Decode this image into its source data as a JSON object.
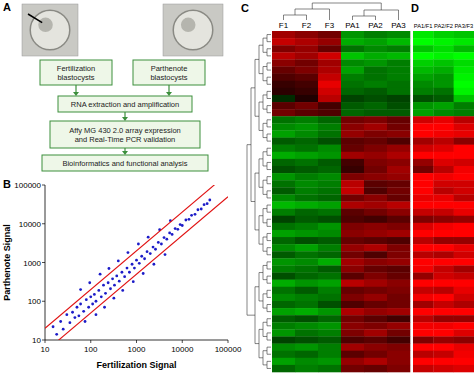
{
  "panel_labels": [
    "A",
    "B",
    "C",
    "D"
  ],
  "flowchart": {
    "nodes": [
      {
        "lines": [
          "Fertilization",
          "blastocysts"
        ]
      },
      {
        "lines": [
          "Parthenote",
          "blastocysts"
        ]
      },
      {
        "lines": [
          "RNA extraction and amplification"
        ]
      },
      {
        "lines": [
          "Affy MG 430 2.0 array expression",
          "and Real-Time PCR validation"
        ]
      },
      {
        "lines": [
          "Bioinformatics and functional analysis"
        ]
      }
    ]
  },
  "chart_data": [
    {
      "type": "scatter",
      "xlabel": "Fertilization Signal",
      "ylabel": "Parthenote Signal",
      "log": true,
      "xlim": [
        10,
        100000
      ],
      "ylim": [
        10,
        100000
      ],
      "xticks": [
        10,
        100,
        1000,
        10000,
        100000
      ],
      "yticks": [
        10,
        100,
        1000,
        10000,
        100000
      ],
      "color": "#1c1cc8",
      "fold_lines": [
        2,
        0.5
      ],
      "x": [
        15,
        18,
        22,
        25,
        30,
        35,
        40,
        45,
        50,
        55,
        60,
        70,
        80,
        90,
        100,
        110,
        120,
        130,
        150,
        170,
        190,
        210,
        240,
        270,
        300,
        330,
        370,
        420,
        480,
        550,
        620,
        700,
        800,
        900,
        1000,
        1150,
        1300,
        1500,
        1700,
        2000,
        2300,
        2600,
        3000,
        3500,
        4000,
        4600,
        5300,
        6000,
        7000,
        8000,
        9000,
        10000,
        12000,
        14000,
        16000,
        19000,
        22000,
        26000,
        30000,
        35000,
        40000,
        60,
        75,
        95,
        130,
        160,
        200,
        250,
        320,
        400,
        500,
        650,
        850,
        1100,
        1400,
        1800,
        2400,
        3200,
        4200,
        5500
      ],
      "values": [
        22,
        14,
        30,
        19,
        45,
        28,
        52,
        38,
        70,
        42,
        85,
        55,
        110,
        70,
        130,
        85,
        150,
        100,
        190,
        130,
        260,
        160,
        300,
        210,
        380,
        260,
        450,
        330,
        560,
        430,
        720,
        560,
        900,
        720,
        1150,
        950,
        1450,
        1250,
        1900,
        1700,
        2500,
        2200,
        3300,
        3000,
        4400,
        4000,
        5800,
        5300,
        7500,
        7200,
        9500,
        9000,
        12500,
        13000,
        16500,
        17500,
        23000,
        24000,
        31000,
        33000,
        41000,
        200,
        30,
        300,
        45,
        500,
        70,
        700,
        120,
        1100,
        190,
        1800,
        320,
        3000,
        520,
        4500,
        900,
        7000,
        1600,
        12000
      ]
    },
    {
      "type": "heatmap",
      "columns": [
        "F1",
        "F2",
        "F3",
        "PA1",
        "PA2",
        "PA3"
      ],
      "zlim": [
        -2,
        2
      ],
      "cells": [
        [
          1.2,
          1.0,
          0.8,
          -1.1,
          -0.9,
          -1.0
        ],
        [
          1.5,
          1.3,
          1.1,
          -1.3,
          -1.2,
          -1.4
        ],
        [
          0.9,
          1.1,
          0.7,
          -0.8,
          -1.0,
          -0.9
        ],
        [
          1.4,
          1.2,
          1.6,
          -1.5,
          -1.3,
          -1.4
        ],
        [
          1.0,
          0.8,
          1.2,
          -1.0,
          -1.1,
          -0.9
        ],
        [
          0.7,
          0.9,
          1.3,
          -1.2,
          -0.8,
          -0.9
        ],
        [
          0.5,
          0.6,
          1.5,
          -0.9,
          -0.8,
          -0.9
        ],
        [
          0.3,
          0.4,
          1.8,
          -0.8,
          -0.9,
          -0.8
        ],
        [
          0.2,
          0.3,
          1.6,
          -0.7,
          -0.6,
          -0.8
        ],
        [
          -0.2,
          0.1,
          1.4,
          -0.4,
          -0.5,
          -0.4
        ],
        [
          0.6,
          0.8,
          0.4,
          -0.6,
          -0.7,
          -0.5
        ],
        [
          0.8,
          0.6,
          0.5,
          -0.7,
          -0.6,
          -0.6
        ],
        [
          -0.8,
          -0.9,
          -0.7,
          0.8,
          0.9,
          0.7
        ],
        [
          -1.0,
          -1.1,
          -0.9,
          1.0,
          1.2,
          0.8
        ],
        [
          -1.2,
          -1.0,
          -0.8,
          1.1,
          0.9,
          1.0
        ],
        [
          -0.6,
          -0.7,
          -0.5,
          0.6,
          0.7,
          0.5
        ],
        [
          -0.9,
          -0.8,
          -1.0,
          0.7,
          0.9,
          1.1
        ],
        [
          -1.3,
          -1.2,
          -1.1,
          1.2,
          1.1,
          1.3
        ],
        [
          -0.7,
          -0.8,
          -0.6,
          0.4,
          0.9,
          1.0
        ],
        [
          -0.5,
          -0.6,
          -0.7,
          0.3,
          0.8,
          1.2
        ],
        [
          -1.1,
          -0.9,
          -1.0,
          0.9,
          1.0,
          1.1
        ],
        [
          -0.8,
          -1.0,
          -0.9,
          1.4,
          0.6,
          0.7
        ],
        [
          -0.6,
          -0.9,
          -0.8,
          1.5,
          0.5,
          0.8
        ],
        [
          -1.0,
          -0.8,
          -0.7,
          0.8,
          1.0,
          0.7
        ],
        [
          -1.4,
          -1.3,
          -1.2,
          1.3,
          1.2,
          1.4
        ],
        [
          -0.9,
          -0.7,
          -0.8,
          0.6,
          0.8,
          1.0
        ],
        [
          -0.4,
          -0.6,
          -0.5,
          0.5,
          0.4,
          0.6
        ],
        [
          -0.8,
          -0.9,
          -1.1,
          0.9,
          1.0,
          0.9
        ],
        [
          -1.2,
          -1.1,
          -1.0,
          1.0,
          1.1,
          1.2
        ],
        [
          -0.7,
          -0.5,
          -0.6,
          0.7,
          0.6,
          0.5
        ],
        [
          -1.0,
          -1.2,
          -0.9,
          1.1,
          1.3,
          0.9
        ],
        [
          -0.6,
          -0.8,
          -0.7,
          0.8,
          0.5,
          0.9
        ],
        [
          -1.1,
          -1.0,
          -1.3,
          1.2,
          1.0,
          1.1
        ],
        [
          -0.9,
          -0.8,
          -0.6,
          1.0,
          0.7,
          0.6
        ],
        [
          -0.5,
          -0.7,
          -0.8,
          0.6,
          0.9,
          0.7
        ],
        [
          -1.3,
          -1.1,
          -1.2,
          1.4,
          1.2,
          1.0
        ],
        [
          -0.8,
          -0.6,
          -0.9,
          0.7,
          0.8,
          0.9
        ],
        [
          -1.0,
          -0.9,
          -0.8,
          0.9,
          1.1,
          0.8
        ],
        [
          -0.7,
          -0.8,
          -0.5,
          0.5,
          0.7,
          0.8
        ],
        [
          -1.2,
          -1.3,
          -1.1,
          1.3,
          1.1,
          1.2
        ],
        [
          -0.6,
          -0.5,
          -0.7,
          0.8,
          0.6,
          0.4
        ],
        [
          -0.9,
          -1.0,
          -1.1,
          1.0,
          0.9,
          1.1
        ],
        [
          -1.1,
          -0.8,
          -0.9,
          0.9,
          1.2,
          0.8
        ],
        [
          -0.4,
          -0.5,
          -0.6,
          0.5,
          0.6,
          0.4
        ],
        [
          -1.0,
          -1.1,
          -0.9,
          1.2,
          1.0,
          0.9
        ],
        [
          -0.8,
          -0.7,
          -0.9,
          0.6,
          0.8,
          1.0
        ],
        [
          -1.2,
          -1.0,
          -1.1,
          1.1,
          1.3,
          1.0
        ],
        [
          -0.7,
          -0.9,
          -0.8,
          0.8,
          0.7,
          0.9
        ]
      ]
    },
    {
      "type": "heatmap",
      "columns": [
        "PA1/F1",
        "PA2/F2",
        "PA3/F3"
      ],
      "zlim": [
        -2,
        2
      ],
      "cells": [
        [
          -1.8,
          -1.6,
          -1.5
        ],
        [
          -2.0,
          -1.9,
          -1.8
        ],
        [
          -1.5,
          -1.7,
          -1.4
        ],
        [
          -2.1,
          -1.9,
          -2.0
        ],
        [
          -1.6,
          -1.5,
          -1.7
        ],
        [
          -1.4,
          -1.3,
          -1.8
        ],
        [
          -1.2,
          -1.1,
          -1.9
        ],
        [
          -1.0,
          -1.1,
          -2.0
        ],
        [
          -0.9,
          -0.8,
          -1.9
        ],
        [
          -0.5,
          -0.6,
          -1.5
        ],
        [
          -1.1,
          -1.2,
          -0.9
        ],
        [
          -1.2,
          -1.0,
          -0.9
        ],
        [
          1.6,
          1.8,
          1.4
        ],
        [
          2.0,
          2.3,
          1.7
        ],
        [
          2.3,
          1.9,
          1.8
        ],
        [
          1.2,
          1.4,
          1.0
        ],
        [
          1.6,
          1.7,
          2.1
        ],
        [
          2.5,
          2.3,
          2.4
        ],
        [
          1.1,
          1.7,
          1.6
        ],
        [
          0.8,
          1.4,
          1.9
        ],
        [
          2.0,
          1.9,
          2.1
        ],
        [
          2.2,
          1.6,
          1.6
        ],
        [
          2.1,
          1.4,
          1.6
        ],
        [
          1.8,
          1.8,
          1.4
        ],
        [
          2.7,
          2.5,
          2.6
        ],
        [
          1.5,
          1.5,
          1.8
        ],
        [
          0.9,
          1.0,
          1.1
        ],
        [
          1.7,
          1.9,
          2.0
        ],
        [
          2.2,
          2.2,
          2.2
        ],
        [
          1.4,
          1.1,
          1.1
        ],
        [
          2.1,
          2.5,
          1.8
        ],
        [
          1.4,
          1.3,
          1.6
        ],
        [
          2.3,
          2.0,
          2.4
        ],
        [
          1.9,
          1.5,
          1.2
        ],
        [
          1.1,
          1.6,
          1.5
        ],
        [
          2.7,
          2.3,
          2.2
        ],
        [
          1.5,
          1.4,
          1.8
        ],
        [
          1.9,
          2.0,
          1.6
        ],
        [
          1.2,
          1.5,
          1.3
        ],
        [
          2.5,
          2.4,
          2.3
        ],
        [
          1.4,
          1.1,
          1.1
        ],
        [
          1.9,
          1.9,
          2.2
        ],
        [
          2.0,
          2.0,
          1.7
        ],
        [
          0.9,
          1.1,
          1.0
        ],
        [
          2.2,
          2.1,
          1.8
        ],
        [
          1.4,
          1.5,
          1.9
        ],
        [
          2.3,
          2.3,
          2.1
        ],
        [
          1.5,
          1.6,
          1.7
        ]
      ]
    }
  ]
}
